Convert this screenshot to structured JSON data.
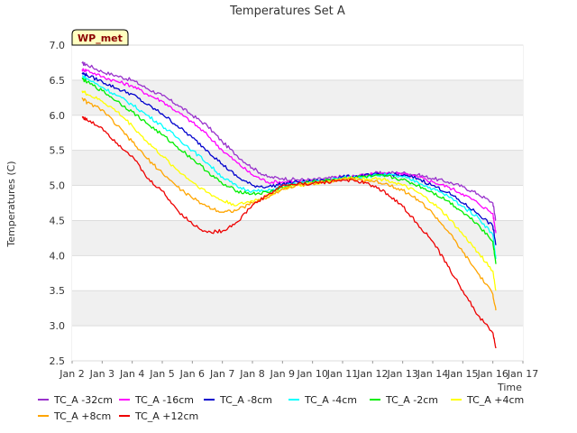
{
  "chart_data": {
    "type": "line",
    "title": "Temperatures Set A",
    "xlabel": "Time",
    "ylabel": "Temperatures (C)",
    "ylim": [
      2.5,
      7.0
    ],
    "yticks": [
      "2.5",
      "3.0",
      "3.5",
      "4.0",
      "4.5",
      "5.0",
      "5.5",
      "6.0",
      "6.5",
      "7.0"
    ],
    "xlim": [
      2,
      17
    ],
    "xticks": [
      "Jan 2",
      "Jan 3",
      "Jan 4",
      "Jan 5",
      "Jan 6",
      "Jan 7",
      "Jan 8",
      "Jan 9",
      "Jan 10",
      "Jan 11",
      "Jan 12",
      "Jan 13",
      "Jan 14",
      "Jan 15",
      "Jan 16",
      "Jan 17"
    ],
    "grid": "horizontal bands",
    "legend_position": "bottom",
    "annotation": "WP_met",
    "x_days": [
      2.33,
      2.5,
      3,
      3.5,
      4,
      4.5,
      5,
      5.5,
      6,
      6.5,
      7,
      7.5,
      8,
      8.5,
      9,
      9.5,
      10,
      10.5,
      11,
      11.5,
      12,
      12.5,
      13,
      13.5,
      14,
      14.5,
      15,
      15.5,
      16,
      16.1
    ],
    "series": [
      {
        "name": "TC_A -32cm",
        "color": "#9932CC",
        "values": [
          6.74,
          6.72,
          6.62,
          6.56,
          6.5,
          6.38,
          6.28,
          6.15,
          6.0,
          5.85,
          5.62,
          5.42,
          5.25,
          5.12,
          5.1,
          5.08,
          5.08,
          5.1,
          5.13,
          5.13,
          5.17,
          5.18,
          5.18,
          5.15,
          5.1,
          5.05,
          4.98,
          4.88,
          4.75,
          4.5
        ]
      },
      {
        "name": "TC_A -16cm",
        "color": "#FF00FF",
        "values": [
          6.65,
          6.64,
          6.55,
          6.48,
          6.42,
          6.3,
          6.2,
          6.05,
          5.9,
          5.72,
          5.5,
          5.32,
          5.15,
          5.05,
          5.05,
          5.05,
          5.06,
          5.08,
          5.12,
          5.13,
          5.16,
          5.17,
          5.16,
          5.12,
          5.05,
          4.98,
          4.88,
          4.75,
          4.6,
          4.32
        ]
      },
      {
        "name": "TC_A -8cm",
        "color": "#0000CD",
        "values": [
          6.6,
          6.57,
          6.48,
          6.38,
          6.3,
          6.15,
          6.02,
          5.85,
          5.68,
          5.5,
          5.3,
          5.12,
          5.0,
          4.98,
          5.02,
          5.05,
          5.06,
          5.08,
          5.12,
          5.13,
          5.15,
          5.16,
          5.14,
          5.1,
          5.0,
          4.9,
          4.75,
          4.6,
          4.42,
          4.15
        ]
      },
      {
        "name": "TC_A -4cm",
        "color": "#00FFFF",
        "values": [
          6.56,
          6.52,
          6.4,
          6.28,
          6.15,
          6.0,
          5.85,
          5.68,
          5.5,
          5.32,
          5.12,
          4.98,
          4.92,
          4.92,
          4.98,
          5.03,
          5.05,
          5.07,
          5.11,
          5.12,
          5.14,
          5.15,
          5.12,
          5.05,
          4.95,
          4.85,
          4.7,
          4.55,
          4.3,
          3.95
        ]
      },
      {
        "name": "TC_A -2cm",
        "color": "#00EE00",
        "values": [
          6.52,
          6.47,
          6.35,
          6.2,
          6.05,
          5.88,
          5.72,
          5.55,
          5.38,
          5.2,
          5.02,
          4.92,
          4.88,
          4.9,
          4.97,
          5.02,
          5.05,
          5.07,
          5.1,
          5.12,
          5.13,
          5.13,
          5.08,
          5.0,
          4.9,
          4.78,
          4.62,
          4.45,
          4.2,
          3.88
        ]
      },
      {
        "name": "TC_A +4cm",
        "color": "#FFFF00",
        "values": [
          6.35,
          6.3,
          6.2,
          6.05,
          5.85,
          5.62,
          5.42,
          5.22,
          5.05,
          4.9,
          4.78,
          4.72,
          4.78,
          4.85,
          4.95,
          5.0,
          5.03,
          5.06,
          5.1,
          5.1,
          5.1,
          5.08,
          5.0,
          4.9,
          4.75,
          4.55,
          4.3,
          4.05,
          3.78,
          3.5
        ]
      },
      {
        "name": "TC_A +8cm",
        "color": "#FFA500",
        "values": [
          6.25,
          6.18,
          6.08,
          5.85,
          5.62,
          5.38,
          5.18,
          4.98,
          4.82,
          4.7,
          4.62,
          4.65,
          4.75,
          4.83,
          4.95,
          5.0,
          5.03,
          5.05,
          5.1,
          5.08,
          5.06,
          5.02,
          4.93,
          4.8,
          4.6,
          4.35,
          4.05,
          3.75,
          3.45,
          3.22
        ]
      },
      {
        "name": "TC_A +12cm",
        "color": "#EE0000",
        "values": [
          5.98,
          5.93,
          5.82,
          5.6,
          5.42,
          5.1,
          4.92,
          4.65,
          4.45,
          4.33,
          4.35,
          4.48,
          4.72,
          4.86,
          5.0,
          5.02,
          5.03,
          5.05,
          5.08,
          5.06,
          5.0,
          4.88,
          4.7,
          4.45,
          4.2,
          3.85,
          3.5,
          3.15,
          2.9,
          2.68
        ]
      }
    ]
  }
}
